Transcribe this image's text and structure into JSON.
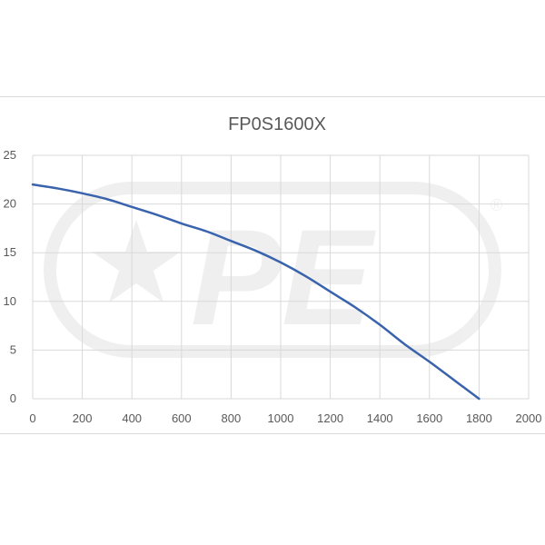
{
  "chart_data": {
    "type": "line",
    "title": "FP0S1600X",
    "xlabel": "",
    "ylabel": "",
    "xlim": [
      0,
      2000
    ],
    "ylim": [
      0,
      25
    ],
    "xticks": [
      0,
      200,
      400,
      600,
      800,
      1000,
      1200,
      1400,
      1600,
      1800,
      2000
    ],
    "yticks": [
      0,
      5,
      10,
      15,
      20,
      25
    ],
    "grid": true,
    "legend": "none",
    "series": [
      {
        "color": "#3a63ad",
        "x": [
          0,
          100,
          200,
          300,
          400,
          500,
          600,
          700,
          800,
          900,
          1000,
          1100,
          1200,
          1300,
          1400,
          1500,
          1600,
          1700,
          1800
        ],
        "y": [
          22.0,
          21.6,
          21.1,
          20.5,
          19.7,
          18.9,
          18.0,
          17.2,
          16.2,
          15.2,
          14.0,
          12.6,
          11.0,
          9.4,
          7.6,
          5.6,
          3.8,
          1.9,
          0.0
        ]
      }
    ]
  },
  "watermark": {
    "text": "PE",
    "registered_mark": "®"
  }
}
